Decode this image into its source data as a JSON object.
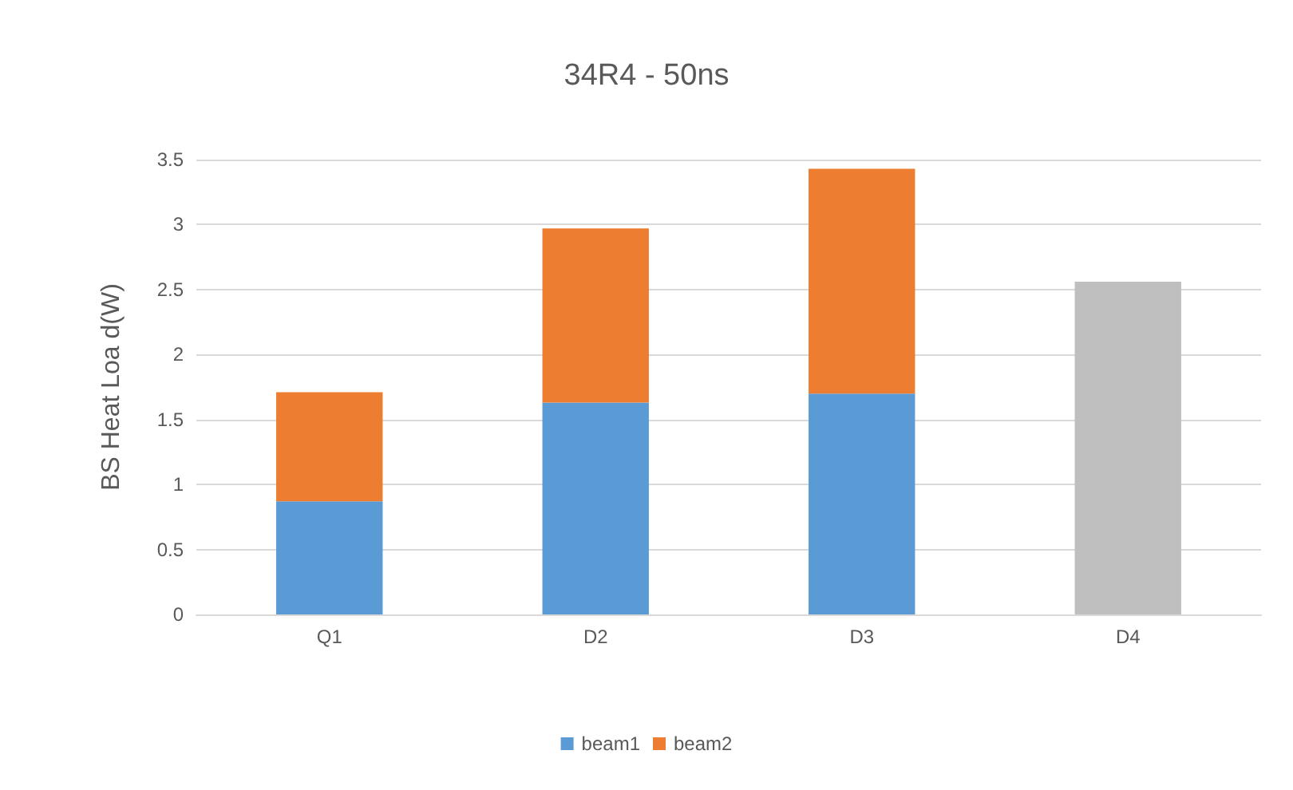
{
  "chart_data": {
    "type": "bar",
    "title": "34R4 - 50ns",
    "ylabel": "BS Heat Loa d(W)",
    "categories": [
      "Q1",
      "D2",
      "D3",
      "D4"
    ],
    "series": [
      {
        "name": "beam1",
        "color": "#5b9bd5",
        "colors": [
          "#5b9bd5",
          "#5b9bd5",
          "#5b9bd5",
          "#bfbfbf"
        ],
        "values": [
          0.87,
          1.63,
          1.7,
          2.56
        ]
      },
      {
        "name": "beam2",
        "color": "#ed7d31",
        "values": [
          0.84,
          1.34,
          1.73,
          null
        ]
      }
    ],
    "stacked": true,
    "ylim": [
      0,
      3.5
    ],
    "yticks": [
      0,
      0.5,
      1,
      1.5,
      2,
      2.5,
      3,
      3.5
    ],
    "grid": "y",
    "legend": "bottom"
  }
}
